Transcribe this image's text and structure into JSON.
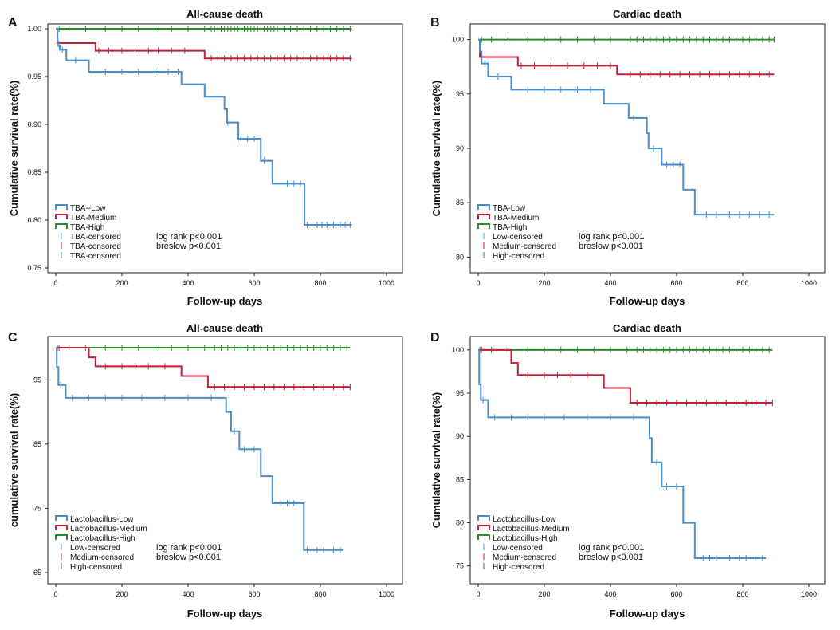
{
  "colors": {
    "low": "#4a8fc9",
    "medium": "#c3203a",
    "high": "#2b8c2b",
    "axis": "#222222",
    "text": "#111111"
  },
  "chart_data": [
    {
      "panel": "A",
      "type": "line",
      "title": "All-cause death",
      "xlabel": "Follow-up days",
      "ylabel": "Cumulative survival rate(%)",
      "xlim": [
        0,
        1000
      ],
      "ylim": [
        0.75,
        1.0
      ],
      "xticks": [
        0,
        200,
        400,
        600,
        800,
        1000
      ],
      "yticks": [
        0.75,
        0.8,
        0.85,
        0.9,
        0.95,
        1.0
      ],
      "ytick_labels": [
        "0.75",
        "0.80",
        "0.85",
        "0.90",
        "0.95",
        "1.00"
      ],
      "stats": [
        "log rank p<0.001",
        "breslow p<0.001"
      ],
      "legend": {
        "placement": "lower-left",
        "lines": [
          "TBA--Low",
          "TBA-Medium",
          "TBA-High"
        ],
        "censored": [
          "TBA-censored",
          "TBA-censored",
          "TBA-censored"
        ]
      },
      "series": [
        {
          "group": "low",
          "x": [
            0,
            5,
            8,
            12,
            32,
            100,
            380,
            450,
            510,
            518,
            525,
            552,
            620,
            655,
            752,
            895
          ],
          "y": [
            1.0,
            0.987,
            0.982,
            0.978,
            0.967,
            0.955,
            0.942,
            0.929,
            0.916,
            0.902,
            0.902,
            0.885,
            0.862,
            0.838,
            0.795,
            0.795
          ],
          "censored": [
            20,
            60,
            150,
            200,
            250,
            300,
            340,
            370,
            520,
            560,
            580,
            600,
            630,
            700,
            720,
            740,
            760,
            775,
            790,
            805,
            820,
            840,
            860,
            875,
            890
          ]
        },
        {
          "group": "medium",
          "x": [
            0,
            5,
            120,
            450,
            895
          ],
          "y": [
            1.0,
            0.985,
            0.977,
            0.969,
            0.969
          ],
          "censored": [
            130,
            160,
            200,
            240,
            280,
            310,
            350,
            390,
            470,
            490,
            510,
            530,
            550,
            570,
            590,
            610,
            630,
            650,
            670,
            690,
            710,
            730,
            750,
            770,
            790,
            810,
            830,
            850,
            870,
            890
          ]
        },
        {
          "group": "high",
          "x": [
            0,
            895
          ],
          "y": [
            1.0,
            1.0
          ],
          "censored": [
            10,
            40,
            90,
            150,
            200,
            250,
            300,
            350,
            400,
            450,
            470,
            480,
            490,
            500,
            510,
            520,
            530,
            540,
            550,
            560,
            570,
            580,
            590,
            600,
            610,
            620,
            630,
            640,
            650,
            660,
            670,
            690,
            710,
            730,
            750,
            770,
            790,
            810,
            830,
            850,
            870,
            890
          ]
        }
      ]
    },
    {
      "panel": "B",
      "type": "line",
      "title": "Cardiac death",
      "xlabel": "Follow-up days",
      "ylabel": "Cumulative survival rate(%)",
      "xlim": [
        0,
        1000
      ],
      "ylim": [
        79,
        101
      ],
      "xticks": [
        0,
        200,
        400,
        600,
        800,
        1000
      ],
      "yticks": [
        80,
        85,
        90,
        95,
        100
      ],
      "ytick_labels": [
        "80",
        "85",
        "90",
        "95",
        "100"
      ],
      "stats": [
        "log rank p<0.001",
        "breslow p<0.001"
      ],
      "legend": {
        "placement": "lower-left",
        "lines": [
          "TBA-Low",
          "TBA-Medium",
          "TBA-High"
        ],
        "censored": [
          "Low-censored",
          "Medium-censored",
          "High-censored"
        ]
      },
      "series": [
        {
          "group": "low",
          "x": [
            0,
            5,
            10,
            30,
            100,
            380,
            455,
            510,
            515,
            522,
            555,
            620,
            655,
            895
          ],
          "y": [
            100,
            98.9,
            97.8,
            96.6,
            95.4,
            94.1,
            92.8,
            91.4,
            90.0,
            90.0,
            88.5,
            86.2,
            83.9,
            83.9
          ],
          "censored": [
            20,
            60,
            150,
            200,
            250,
            300,
            340,
            470,
            530,
            570,
            590,
            610,
            690,
            720,
            760,
            790,
            820,
            850,
            880
          ]
        },
        {
          "group": "medium",
          "x": [
            0,
            5,
            120,
            420,
            895
          ],
          "y": [
            100,
            98.4,
            97.6,
            96.8,
            96.8
          ],
          "censored": [
            130,
            170,
            220,
            270,
            320,
            360,
            400,
            460,
            490,
            520,
            550,
            580,
            610,
            640,
            670,
            700,
            730,
            760,
            790,
            820,
            850,
            880
          ]
        },
        {
          "group": "high",
          "x": [
            0,
            895
          ],
          "y": [
            100,
            100
          ],
          "censored": [
            10,
            40,
            90,
            150,
            200,
            250,
            300,
            350,
            400,
            460,
            480,
            500,
            520,
            540,
            560,
            580,
            600,
            620,
            640,
            660,
            680,
            700,
            720,
            740,
            760,
            780,
            800,
            820,
            840,
            860,
            880,
            895
          ]
        }
      ]
    },
    {
      "panel": "C",
      "type": "line",
      "title": "All-cause death",
      "xlabel": "Follow-up days",
      "ylabel": "cumulative survival rate(%)",
      "xlim": [
        0,
        1000
      ],
      "ylim": [
        64,
        101
      ],
      "xticks": [
        0,
        200,
        400,
        600,
        800,
        1000
      ],
      "yticks": [
        65,
        75,
        85,
        95
      ],
      "ytick_labels": [
        "65",
        "75",
        "85",
        "95"
      ],
      "stats": [
        "log rank p<0.001",
        "breslow p<0.001"
      ],
      "legend": {
        "placement": "lower-left",
        "lines": [
          "Lactobacillus-Low",
          "Lactobacillus-Medium",
          "Lactobacillus-High"
        ],
        "censored": [
          "Low-censored",
          "Medium-censored",
          "High-censored"
        ]
      },
      "series": [
        {
          "group": "low",
          "x": [
            0,
            3,
            8,
            30,
            510,
            515,
            530,
            555,
            620,
            655,
            750,
            870
          ],
          "y": [
            100,
            97,
            94.2,
            92.2,
            92.2,
            90.0,
            87.0,
            84.2,
            80.0,
            75.8,
            68.5,
            68.5
          ],
          "censored": [
            15,
            50,
            100,
            150,
            200,
            260,
            330,
            400,
            470,
            540,
            570,
            600,
            680,
            700,
            720,
            760,
            790,
            810,
            840,
            860
          ]
        },
        {
          "group": "medium",
          "x": [
            0,
            100,
            120,
            380,
            460,
            890
          ],
          "y": [
            100,
            98.5,
            97.1,
            95.6,
            93.9,
            93.9
          ],
          "censored": [
            10,
            150,
            200,
            240,
            280,
            330,
            480,
            510,
            540,
            570,
            600,
            630,
            660,
            690,
            720,
            750,
            780,
            810,
            840,
            870,
            890
          ]
        },
        {
          "group": "high",
          "x": [
            0,
            890
          ],
          "y": [
            100,
            100
          ],
          "censored": [
            5,
            40,
            90,
            150,
            200,
            250,
            300,
            350,
            400,
            450,
            480,
            500,
            520,
            540,
            560,
            580,
            600,
            620,
            640,
            660,
            680,
            700,
            720,
            740,
            760,
            780,
            800,
            820,
            840,
            860,
            880
          ]
        }
      ]
    },
    {
      "panel": "D",
      "type": "line",
      "title": "Cardiac death",
      "xlabel": "Follow-up days",
      "ylabel": "Cumulative survival rate(%)",
      "xlim": [
        0,
        1000
      ],
      "ylim": [
        73.5,
        101
      ],
      "xticks": [
        0,
        200,
        400,
        600,
        800,
        1000
      ],
      "yticks": [
        75,
        80,
        85,
        90,
        95,
        100
      ],
      "ytick_labels": [
        "75",
        "80",
        "85",
        "90",
        "95",
        "100"
      ],
      "stats": [
        "log rank p<0.001",
        "breslow p<0.001"
      ],
      "legend": {
        "placement": "lower-left",
        "lines": [
          "Lactobacillus-Low",
          "Lactobacillus-Medium",
          "Lactobacillus-High"
        ],
        "censored": [
          "Low-censored",
          "Medium-censored",
          "High-censored"
        ]
      },
      "series": [
        {
          "group": "low",
          "x": [
            0,
            3,
            8,
            30,
            510,
            518,
            525,
            555,
            620,
            655,
            870
          ],
          "y": [
            100,
            96.0,
            94.2,
            92.2,
            92.2,
            89.8,
            87.0,
            84.2,
            80.0,
            75.9,
            75.9
          ],
          "censored": [
            15,
            50,
            100,
            150,
            200,
            260,
            330,
            400,
            470,
            540,
            570,
            600,
            680,
            700,
            720,
            760,
            790,
            810,
            840,
            860
          ]
        },
        {
          "group": "medium",
          "x": [
            0,
            100,
            120,
            380,
            460,
            890
          ],
          "y": [
            100,
            98.5,
            97.1,
            95.6,
            93.9,
            93.9
          ],
          "censored": [
            10,
            150,
            200,
            240,
            280,
            330,
            480,
            510,
            540,
            570,
            600,
            630,
            660,
            690,
            720,
            750,
            780,
            810,
            840,
            870,
            890
          ]
        },
        {
          "group": "high",
          "x": [
            0,
            890
          ],
          "y": [
            100,
            100
          ],
          "censored": [
            5,
            40,
            90,
            150,
            200,
            250,
            300,
            350,
            400,
            450,
            480,
            500,
            520,
            540,
            560,
            580,
            600,
            620,
            640,
            660,
            680,
            700,
            720,
            740,
            760,
            780,
            800,
            820,
            840,
            860,
            880
          ]
        }
      ]
    }
  ]
}
